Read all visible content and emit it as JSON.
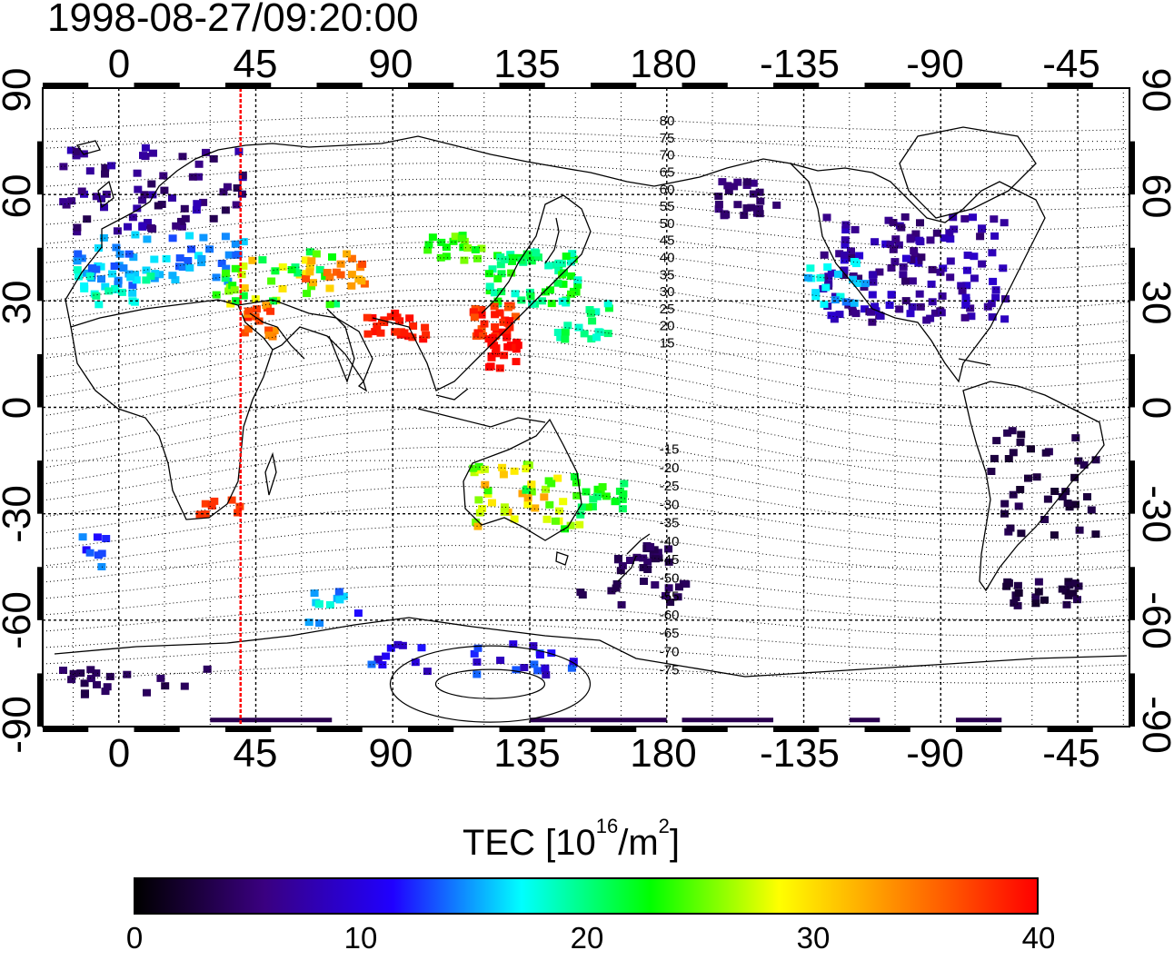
{
  "timestamp": "1998-08-27/09:20:00",
  "map": {
    "lon_ticks_top": [
      "0",
      "45",
      "90",
      "135",
      "180",
      "-135",
      "-90",
      "-45"
    ],
    "lon_ticks_bottom": [
      "0",
      "45",
      "90",
      "135",
      "180",
      "-135",
      "-90",
      "-45"
    ],
    "lat_ticks_left": [
      "90",
      "60",
      "30",
      "0",
      "-30",
      "-60",
      "-90"
    ],
    "lat_ticks_right": [
      "90",
      "60",
      "30",
      "0",
      "-30",
      "-60",
      "-90"
    ],
    "magnetic_latitude_labels": [
      "80",
      "75",
      "70",
      "65",
      "60",
      "55",
      "50",
      "45",
      "40",
      "35",
      "30",
      "25",
      "20",
      "15",
      "-15",
      "-20",
      "-25",
      "-30",
      "-35",
      "-40",
      "-45",
      "-50",
      "-55",
      "-60",
      "-65",
      "-70",
      "-75"
    ],
    "sun_meridian_line_color": "#ff0000",
    "grid": "dotted",
    "lon_range": [
      -25,
      332
    ],
    "lat_range": [
      -90,
      90
    ]
  },
  "colorbar": {
    "label_prefix": "TEC  [10",
    "label_exp1": "16",
    "label_mid": "/m",
    "label_exp2": "2",
    "label_suffix": "]",
    "ticks": [
      "0",
      "10",
      "20",
      "30",
      "40"
    ],
    "range": [
      0,
      40
    ],
    "colormap": [
      "#000000",
      "#3a0080",
      "#2000ff",
      "#00ffff",
      "#00ff00",
      "#ffff00",
      "#ff8000",
      "#ff0000"
    ]
  }
}
